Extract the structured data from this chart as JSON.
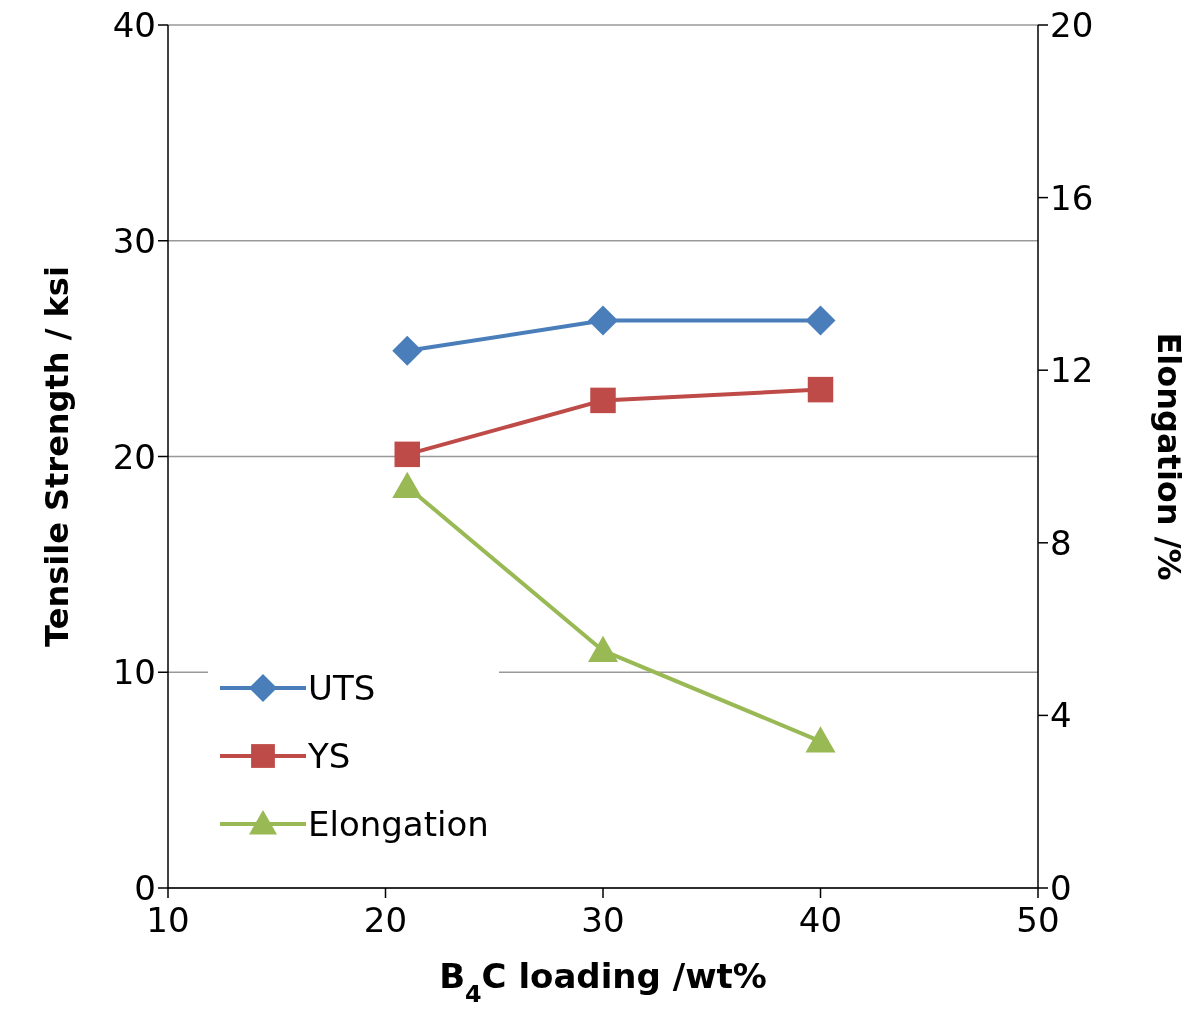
{
  "chart_data": {
    "type": "line",
    "xlabel": "B$_{4}$C loading  /wt%",
    "ylabel": "Tensile Strength / ksi",
    "y2label": "Elongation /%",
    "x": [
      21,
      30,
      40
    ],
    "xlim": [
      10,
      50
    ],
    "xticks": [
      10,
      20,
      30,
      40,
      50
    ],
    "ylim": [
      0,
      40
    ],
    "yticks": [
      0,
      10,
      20,
      30,
      40
    ],
    "y2lim": [
      0,
      20
    ],
    "y2ticks": [
      0,
      4,
      8,
      12,
      16,
      20
    ],
    "grid": "y",
    "legend": "bottom left",
    "line_style": "solid",
    "series": [
      {
        "name": "UTS",
        "color": "#4a7ebb",
        "marker": "diamond",
        "values": [
          24.9,
          26.3,
          26.3
        ]
      },
      {
        "name": "YS",
        "color": "#be4b48",
        "marker": "square",
        "values": [
          20.1,
          22.6,
          23.1
        ]
      },
      {
        "name": "Elongation",
        "color": "#98b954",
        "marker": "triangle",
        "axis": "y2",
        "values": [
          9.3,
          5.5,
          3.4
        ]
      }
    ]
  }
}
